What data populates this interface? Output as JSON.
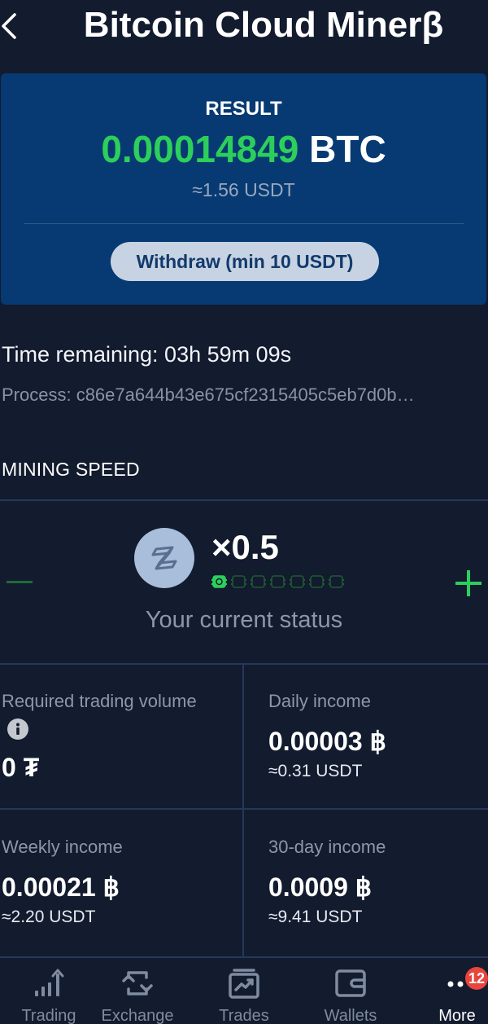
{
  "header": {
    "title": "Bitcoin Cloud Minerβ"
  },
  "result": {
    "label": "RESULT",
    "amount": "0.00014849",
    "currency": "BTC",
    "usdt": "≈1.56 USDT",
    "withdraw_label": "Withdraw (min 10 USDT)"
  },
  "process": {
    "time_remaining": "Time remaining: 03h 59m 09s",
    "process_id": "Process: c86e7a644b43e675cf2315405c5eb7d0b…"
  },
  "mining": {
    "section_title": "MINING SPEED",
    "multiplier": "×0.5",
    "level": 1,
    "level_max": 7,
    "status_text": "Your current status"
  },
  "stats": {
    "required": {
      "label": "Required trading volume",
      "value": "0 ₮"
    },
    "daily": {
      "label": "Daily income",
      "value": "0.00003 ฿",
      "usdt": "≈0.31 USDT"
    },
    "weekly": {
      "label": "Weekly income",
      "value": "0.00021 ฿",
      "usdt": "≈2.20 USDT"
    },
    "monthly": {
      "label": "30-day income",
      "value": "0.0009 ฿",
      "usdt": "≈9.41 USDT"
    }
  },
  "tabs": [
    {
      "label": "Trading",
      "icon": "chart-bars-icon"
    },
    {
      "label": "Exchange",
      "icon": "exchange-icon"
    },
    {
      "label": "Trades",
      "icon": "trades-icon"
    },
    {
      "label": "Wallets",
      "icon": "wallet-icon"
    },
    {
      "label": "More",
      "icon": "more-dots-icon",
      "badge": "12",
      "active": true
    }
  ],
  "colors": {
    "background": "#131b2e",
    "card": "#073a72",
    "accent_green": "#2ccf5b",
    "badge_red": "#e8453c"
  }
}
